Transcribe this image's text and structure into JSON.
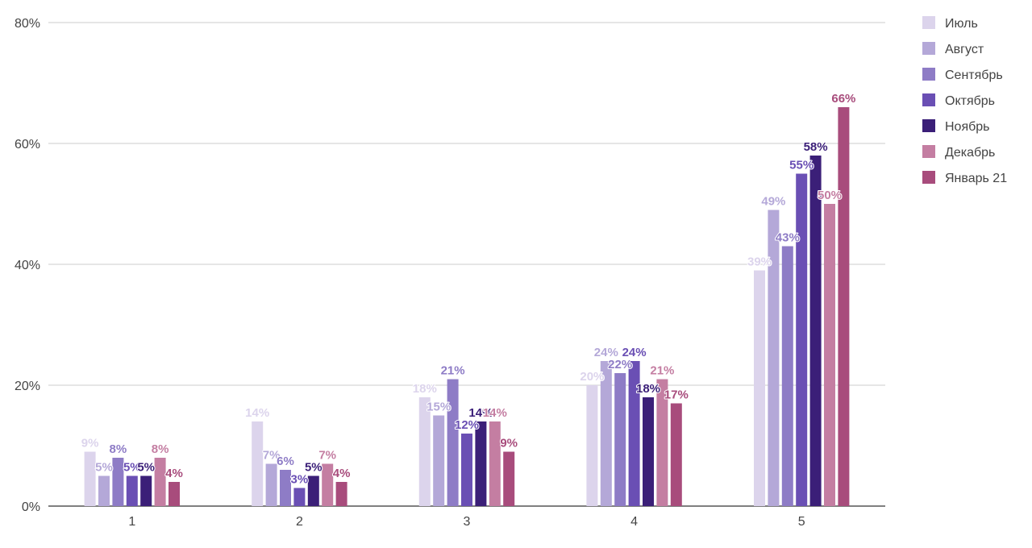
{
  "chart_data": {
    "type": "bar",
    "title": "",
    "xlabel": "",
    "ylabel": "",
    "categories": [
      "1",
      "2",
      "3",
      "4",
      "5"
    ],
    "ylim": [
      0,
      80
    ],
    "yticks": [
      "0%",
      "20%",
      "40%",
      "60%",
      "80%"
    ],
    "grid": true,
    "legend_position": "right",
    "series": [
      {
        "name": "Июль",
        "color": "#dcd4ec",
        "values": [
          9,
          14,
          18,
          20,
          39
        ],
        "labels": [
          "9%",
          "14%",
          "18%",
          "20%",
          "39%"
        ]
      },
      {
        "name": "Август",
        "color": "#b4a8d8",
        "values": [
          5,
          7,
          15,
          24,
          49
        ],
        "labels": [
          "5%",
          "7%",
          "15%",
          "24%",
          "49%"
        ]
      },
      {
        "name": "Сентябрь",
        "color": "#8e7cc6",
        "values": [
          8,
          6,
          21,
          22,
          43
        ],
        "labels": [
          "8%",
          "6%",
          "21%",
          "22%",
          "43%"
        ]
      },
      {
        "name": "Октябрь",
        "color": "#6a4fb4",
        "values": [
          5,
          3,
          12,
          24,
          55
        ],
        "labels": [
          "5%",
          "3%",
          "12%",
          "24%",
          "55%"
        ]
      },
      {
        "name": "Ноябрь",
        "color": "#3b1f78",
        "values": [
          5,
          5,
          14,
          18,
          58
        ],
        "labels": [
          "5%",
          "5%",
          "14%",
          "18%",
          "58%"
        ]
      },
      {
        "name": "Декабрь",
        "color": "#c47ea2",
        "values": [
          8,
          7,
          14,
          21,
          50
        ],
        "labels": [
          "8%",
          "7%",
          "14%",
          "21%",
          "50%"
        ]
      },
      {
        "name": "Январь 21",
        "color": "#a84c7c",
        "values": [
          4,
          4,
          9,
          17,
          66
        ],
        "labels": [
          "4%",
          "4%",
          "9%",
          "17%",
          "66%"
        ]
      }
    ]
  }
}
